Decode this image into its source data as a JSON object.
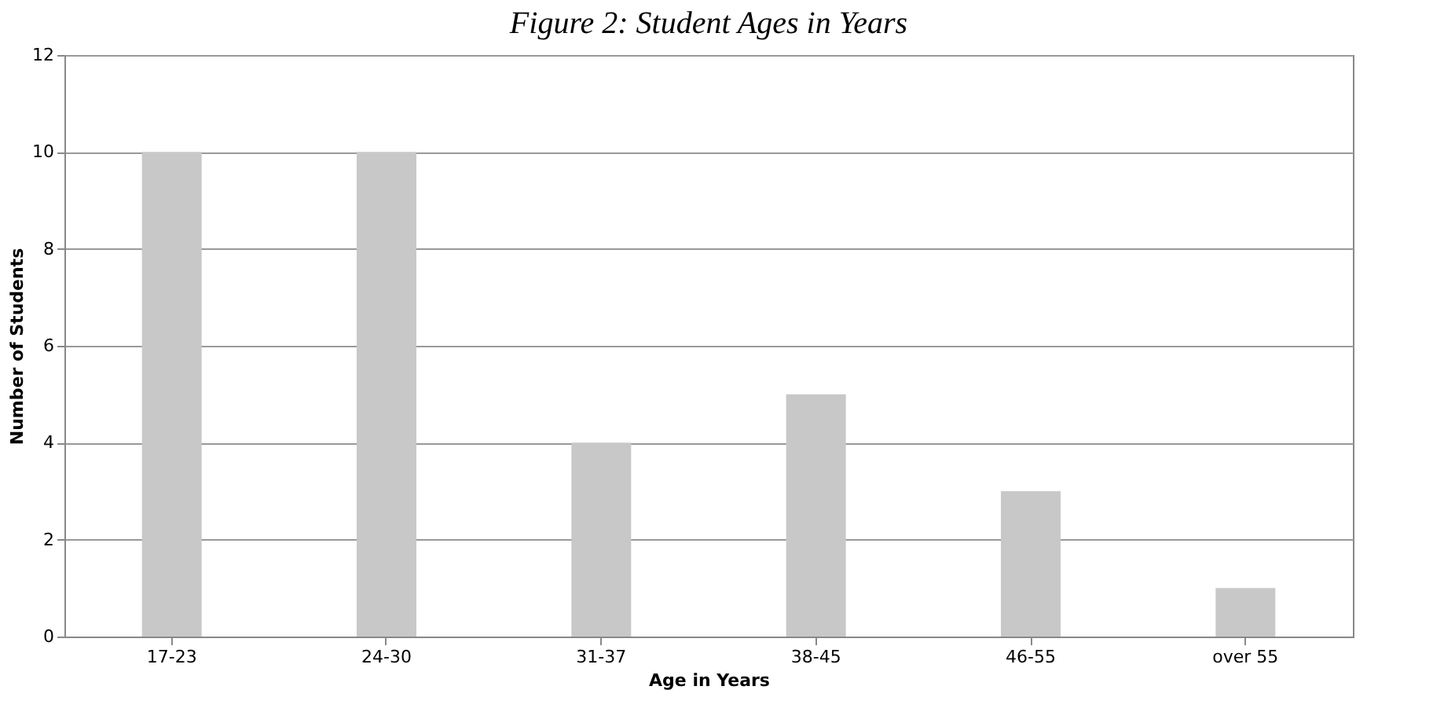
{
  "chart_data": {
    "type": "bar",
    "title": "Figure 2: Student Ages in Years",
    "xlabel": "Age in Years",
    "ylabel": "Number of Students",
    "categories": [
      "17-23",
      "24-30",
      "31-37",
      "38-45",
      "46-55",
      "over 55"
    ],
    "values": [
      10,
      10,
      4,
      5,
      3,
      1
    ],
    "color": "#c8c8c8",
    "ylim": [
      0,
      12
    ],
    "yticks": [
      0,
      2,
      4,
      6,
      8,
      10,
      12
    ],
    "grid": "y"
  }
}
